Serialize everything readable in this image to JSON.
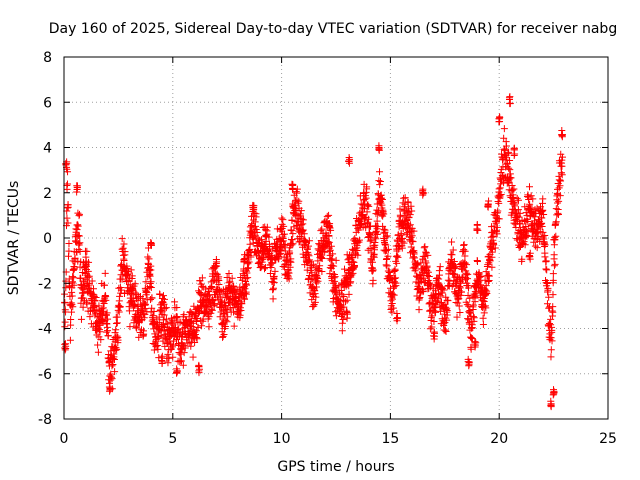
{
  "chart_data": {
    "type": "scatter",
    "title": "Day 160 of 2025, Sidereal Day-to-day VTEC variation (SDTVAR) for receiver nabg",
    "xlabel": "GPS time / hours",
    "ylabel": "SDTVAR / TECUs",
    "xlim": [
      0,
      25
    ],
    "ylim": [
      -8,
      8
    ],
    "xticks": [
      0,
      5,
      10,
      15,
      20,
      25
    ],
    "yticks": [
      -8,
      -6,
      -4,
      -2,
      0,
      2,
      4,
      6,
      8
    ],
    "grid": true,
    "marker": "+",
    "series_color": "#ff0000",
    "anchors": [
      [
        0.0,
        -0.3
      ],
      [
        0.05,
        -4.5
      ],
      [
        0.15,
        2.8
      ],
      [
        0.3,
        -3.5
      ],
      [
        0.5,
        -0.5
      ],
      [
        0.7,
        0.5
      ],
      [
        0.8,
        -3.0
      ],
      [
        1.0,
        -1.5
      ],
      [
        1.3,
        -2.8
      ],
      [
        1.6,
        -4.0
      ],
      [
        1.9,
        -2.5
      ],
      [
        2.1,
        -5.8
      ],
      [
        2.3,
        -5.3
      ],
      [
        2.5,
        -3.5
      ],
      [
        2.7,
        -0.7
      ],
      [
        3.0,
        -2.5
      ],
      [
        3.3,
        -3.2
      ],
      [
        3.6,
        -3.8
      ],
      [
        3.9,
        -1.3
      ],
      [
        4.2,
        -4.6
      ],
      [
        4.5,
        -3.2
      ],
      [
        4.8,
        -4.5
      ],
      [
        5.1,
        -4.0
      ],
      [
        5.4,
        -4.8
      ],
      [
        5.7,
        -3.5
      ],
      [
        6.0,
        -4.3
      ],
      [
        6.3,
        -2.5
      ],
      [
        6.6,
        -3.2
      ],
      [
        7.0,
        -1.8
      ],
      [
        7.3,
        -3.5
      ],
      [
        7.6,
        -2.5
      ],
      [
        8.0,
        -3.0
      ],
      [
        8.3,
        -2.0
      ],
      [
        8.7,
        0.8
      ],
      [
        9.0,
        -1.0
      ],
      [
        9.3,
        -0.2
      ],
      [
        9.6,
        -1.5
      ],
      [
        10.0,
        0.2
      ],
      [
        10.3,
        -1.8
      ],
      [
        10.6,
        1.5
      ],
      [
        10.9,
        0.5
      ],
      [
        11.2,
        -1.0
      ],
      [
        11.5,
        -2.3
      ],
      [
        11.8,
        -0.5
      ],
      [
        12.1,
        0.3
      ],
      [
        12.4,
        -2.0
      ],
      [
        12.7,
        -3.2
      ],
      [
        13.0,
        -2.0
      ],
      [
        13.3,
        -1.0
      ],
      [
        13.6,
        0.6
      ],
      [
        13.9,
        1.5
      ],
      [
        14.2,
        -1.5
      ],
      [
        14.5,
        2.2
      ],
      [
        14.8,
        -0.6
      ],
      [
        15.1,
        -2.8
      ],
      [
        15.4,
        0.3
      ],
      [
        15.7,
        1.0
      ],
      [
        16.0,
        -0.1
      ],
      [
        16.3,
        -2.5
      ],
      [
        16.6,
        -0.8
      ],
      [
        16.9,
        -3.3
      ],
      [
        17.2,
        -1.8
      ],
      [
        17.5,
        -3.5
      ],
      [
        17.8,
        -1.0
      ],
      [
        18.1,
        -2.8
      ],
      [
        18.4,
        -0.6
      ],
      [
        18.7,
        -4.2
      ],
      [
        19.0,
        -1.5
      ],
      [
        19.3,
        -3.2
      ],
      [
        19.6,
        -0.6
      ],
      [
        19.9,
        1.0
      ],
      [
        20.2,
        3.5
      ],
      [
        20.5,
        2.5
      ],
      [
        20.8,
        0.8
      ],
      [
        21.1,
        0.0
      ],
      [
        21.4,
        1.5
      ],
      [
        21.7,
        0.3
      ],
      [
        22.0,
        1.0
      ],
      [
        22.2,
        -2.0
      ],
      [
        22.4,
        -5.0
      ],
      [
        22.5,
        -1.0
      ],
      [
        22.7,
        2.0
      ],
      [
        22.9,
        3.3
      ]
    ],
    "excursions": [
      [
        0.05,
        -4.8
      ],
      [
        0.1,
        3.2
      ],
      [
        0.6,
        2.2
      ],
      [
        1.0,
        -1.2
      ],
      [
        2.1,
        -6.6
      ],
      [
        4.0,
        -0.2
      ],
      [
        4.5,
        -5.4
      ],
      [
        5.2,
        -5.9
      ],
      [
        6.2,
        -5.8
      ],
      [
        7.0,
        -1.1
      ],
      [
        8.3,
        -0.9
      ],
      [
        8.7,
        1.3
      ],
      [
        10.5,
        2.3
      ],
      [
        12.2,
        0.5
      ],
      [
        13.0,
        -3.4
      ],
      [
        13.1,
        3.4
      ],
      [
        14.5,
        4.0
      ],
      [
        15.3,
        -3.5
      ],
      [
        16.5,
        2.0
      ],
      [
        17.0,
        -4.3
      ],
      [
        18.6,
        -5.5
      ],
      [
        18.9,
        -4.7
      ],
      [
        19.0,
        0.5
      ],
      [
        19.5,
        1.5
      ],
      [
        20.0,
        5.2
      ],
      [
        20.5,
        6.1
      ],
      [
        20.7,
        3.8
      ],
      [
        21.4,
        -0.8
      ],
      [
        22.4,
        -7.3
      ],
      [
        22.5,
        -6.8
      ],
      [
        22.9,
        4.6
      ]
    ],
    "point_count": 2600,
    "spread_tecu": 0.85,
    "random_seed": 160
  }
}
